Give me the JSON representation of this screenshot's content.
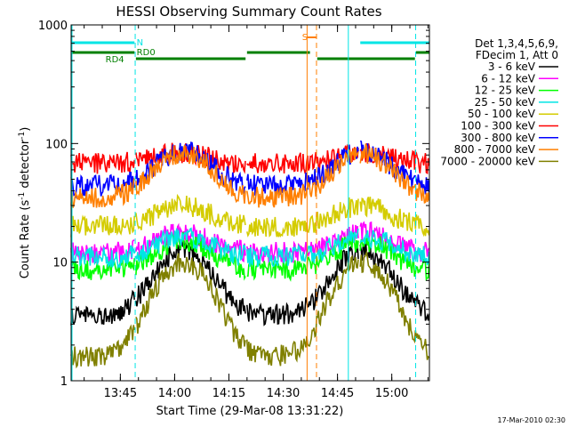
{
  "chart_data": {
    "type": "line",
    "title": "HESSI Observing Summary Count Rates",
    "xlabel": "Start Time (29-Mar-08 13:31:22)",
    "ylabel": "Count Rate (s",
    "ylabel_sup1": "-1",
    "ylabel_mid": " detector",
    "ylabel_sup2": "-1",
    "ylabel_end": ")",
    "yscale": "log",
    "ylim": [
      1,
      1000
    ],
    "xlim_minutes": [
      0,
      99
    ],
    "x_ticks": [
      {
        "label": "13:45",
        "minute": 13.6
      },
      {
        "label": "14:00",
        "minute": 28.6
      },
      {
        "label": "14:15",
        "minute": 43.6
      },
      {
        "label": "14:30",
        "minute": 58.6
      },
      {
        "label": "14:45",
        "minute": 73.6
      },
      {
        "label": "15:00",
        "minute": 88.6
      }
    ],
    "y_ticks": [
      {
        "label": "1",
        "value": 1
      },
      {
        "label": "10",
        "value": 10
      },
      {
        "label": "100",
        "value": 100
      },
      {
        "label": "1000",
        "value": 1000
      }
    ],
    "legend_header": [
      "Det 1,3,4,5,6,9,",
      "FDecim 1, Att 0"
    ],
    "series": [
      {
        "name": "3 - 6 keV",
        "color": "#000000",
        "base": 3.6,
        "peak": 12.5
      },
      {
        "name": "6 - 12 keV",
        "color": "#ff00ff",
        "base": 12.0,
        "peak": 18.0
      },
      {
        "name": "12 - 25 keV",
        "color": "#00ff00",
        "base": 8.5,
        "peak": 15.0
      },
      {
        "name": "25 - 50 keV",
        "color": "#00e5e5",
        "base": 11.0,
        "peak": 16.5
      },
      {
        "name": "50 - 100 keV",
        "color": "#d4cc00",
        "base": 20.0,
        "peak": 30.0
      },
      {
        "name": "100 - 300 keV",
        "color": "#ff0000",
        "base": 68.0,
        "peak": 84.0
      },
      {
        "name": "300 - 800 keV",
        "color": "#0000ff",
        "base": 44.0,
        "peak": 86.0
      },
      {
        "name": "800 - 7000 keV",
        "color": "#ff7f00",
        "base": 35.0,
        "peak": 84.0
      },
      {
        "name": "7000 - 20000 keV",
        "color": "#808000",
        "base": 1.6,
        "peak": 10.0
      }
    ],
    "annotations": [
      {
        "text": "N",
        "color": "#00e5e5"
      },
      {
        "text": "RD0",
        "color": "#008000"
      },
      {
        "text": "RD4",
        "color": "#008000"
      },
      {
        "text": "S",
        "color": "#ff7f00"
      }
    ]
  },
  "footer_timestamp": "17-Mar-2010 02:30"
}
